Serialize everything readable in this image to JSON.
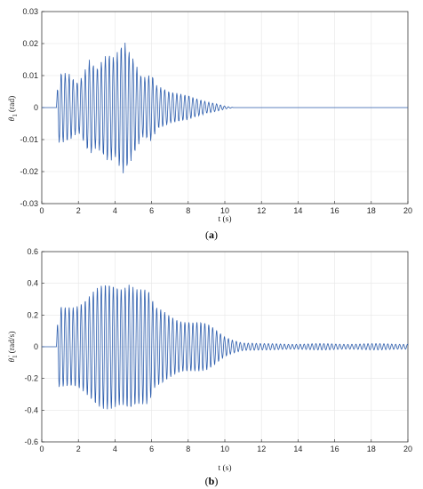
{
  "chart_data": [
    {
      "type": "line",
      "panel_label_prefix": "(",
      "panel_label_letter": "a",
      "panel_label_suffix": ")",
      "xlabel": "t (s)",
      "ylabel_symbol": "θ",
      "ylabel_subscript": "1",
      "ylabel_unit": "(rad)",
      "xlim": [
        0,
        20
      ],
      "ylim": [
        -0.03,
        0.03
      ],
      "xticks": [
        "0",
        "2",
        "4",
        "6",
        "8",
        "10",
        "12",
        "14",
        "16",
        "18",
        "20"
      ],
      "yticks": [
        "0.03",
        "0.02",
        "0.01",
        "0",
        "-0.01",
        "-0.02",
        "-0.03"
      ],
      "grid": true,
      "line_color": "#2f5fae",
      "signal": {
        "samples_per_second": 40,
        "frequency_hz": 4.6,
        "onset_s": 0.8,
        "envelope": [
          [
            0,
            0
          ],
          [
            0.8,
            0
          ],
          [
            0.9,
            0.011
          ],
          [
            1.5,
            0.012
          ],
          [
            2.0,
            0.01
          ],
          [
            2.6,
            0.019
          ],
          [
            3.0,
            0.014
          ],
          [
            3.6,
            0.017
          ],
          [
            4.0,
            0.016
          ],
          [
            4.5,
            0.024
          ],
          [
            5.0,
            0.02
          ],
          [
            5.5,
            0.012
          ],
          [
            6.0,
            0.012
          ],
          [
            6.3,
            0.007
          ],
          [
            7.0,
            0.005
          ],
          [
            8.0,
            0.005
          ],
          [
            9.0,
            0.002
          ],
          [
            10.0,
            0.0005
          ],
          [
            10.5,
            0
          ],
          [
            20,
            0
          ]
        ]
      }
    },
    {
      "type": "line",
      "panel_label_prefix": "(",
      "panel_label_letter": "b",
      "panel_label_suffix": ")",
      "xlabel": "t (s)",
      "ylabel_symbol": "θ̇",
      "ylabel_subscript": "1",
      "ylabel_unit": "(rad/s)",
      "xlim": [
        0,
        20
      ],
      "ylim": [
        -0.6,
        0.6
      ],
      "xticks": [
        "0",
        "2",
        "4",
        "6",
        "8",
        "10",
        "12",
        "14",
        "16",
        "18",
        "20"
      ],
      "yticks": [
        "0.6",
        "0.4",
        "0.2",
        "0",
        "-0.2",
        "-0.4",
        "-0.6"
      ],
      "grid": true,
      "line_color": "#2f5fae",
      "signal": {
        "samples_per_second": 60,
        "frequency_hz": 4.6,
        "onset_s": 0.8,
        "envelope": [
          [
            0,
            0
          ],
          [
            0.8,
            0
          ],
          [
            0.9,
            0.28
          ],
          [
            1.5,
            0.32
          ],
          [
            2.5,
            0.35
          ],
          [
            3.5,
            0.4
          ],
          [
            4.3,
            0.45
          ],
          [
            4.8,
            0.52
          ],
          [
            5.2,
            0.45
          ],
          [
            5.8,
            0.38
          ],
          [
            6.2,
            0.25
          ],
          [
            7.0,
            0.22
          ],
          [
            8.0,
            0.2
          ],
          [
            9.0,
            0.15
          ],
          [
            10.0,
            0.07
          ],
          [
            11.0,
            0.03
          ],
          [
            12.0,
            0.02
          ],
          [
            20,
            0.02
          ]
        ]
      }
    }
  ]
}
